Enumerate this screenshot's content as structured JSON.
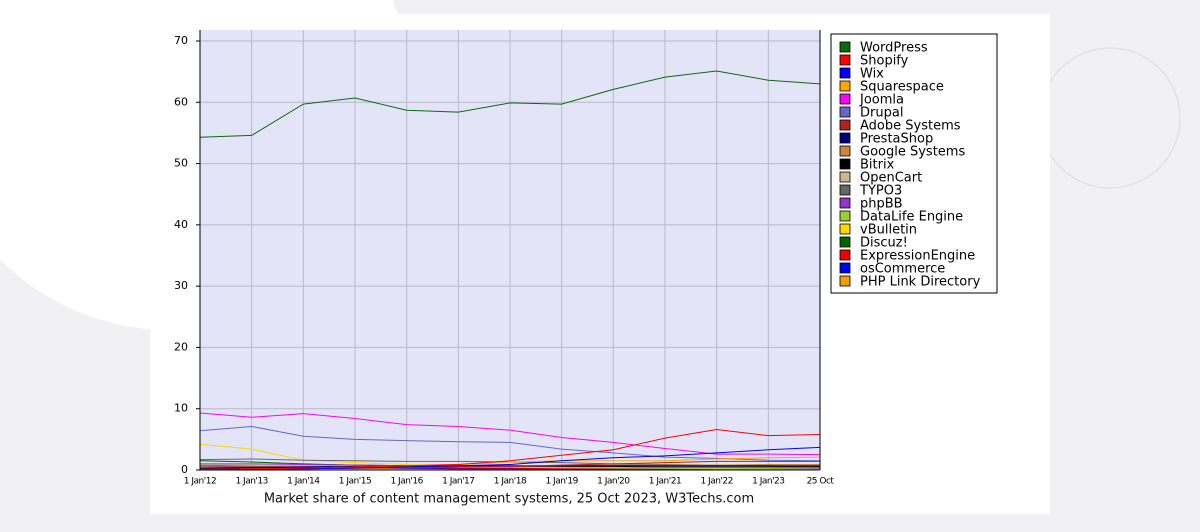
{
  "chart_data": {
    "type": "line",
    "title": "Market share of content management systems, 25 Oct 2023, W3Techs.com",
    "categories": [
      "1 Jan'12",
      "1 Jan'13",
      "1 Jan'14",
      "1 Jan'15",
      "1 Jan'16",
      "1 Jan'17",
      "1 Jan'18",
      "1 Jan'19",
      "1 Jan'20",
      "1 Jan'21",
      "1 Jan'22",
      "1 Jan'23",
      "25 Oct"
    ],
    "ylim": [
      0,
      70
    ],
    "yticks": [
      0,
      10,
      20,
      30,
      40,
      50,
      60,
      70
    ],
    "grid": true,
    "legend": "right",
    "series": [
      {
        "name": "WordPress",
        "color": "#0b6b0b",
        "values": [
          54.3,
          54.6,
          59.7,
          60.7,
          58.7,
          58.4,
          59.9,
          59.7,
          62.1,
          64.1,
          65.1,
          63.6,
          63.0
        ]
      },
      {
        "name": "Shopify",
        "color": "#ff0000",
        "values": [
          0.1,
          0.2,
          0.3,
          0.5,
          0.7,
          0.9,
          1.5,
          2.4,
          3.3,
          5.2,
          6.6,
          5.6,
          5.8
        ]
      },
      {
        "name": "Wix",
        "color": "#0000ff",
        "values": [
          0.1,
          0.1,
          0.2,
          0.3,
          0.5,
          0.7,
          0.9,
          1.5,
          2.0,
          2.3,
          2.8,
          3.3,
          3.7
        ]
      },
      {
        "name": "Squarespace",
        "color": "#ffa500",
        "values": [
          0.1,
          0.2,
          0.3,
          0.5,
          0.7,
          0.9,
          1.3,
          1.5,
          1.5,
          1.5,
          1.8,
          2.0,
          2.1
        ]
      },
      {
        "name": "Joomla",
        "color": "#ff00ff",
        "values": [
          9.3,
          8.6,
          9.2,
          8.4,
          7.4,
          7.1,
          6.5,
          5.3,
          4.5,
          3.5,
          2.6,
          2.6,
          2.5
        ]
      },
      {
        "name": "Drupal",
        "color": "#6666cc",
        "values": [
          6.4,
          7.1,
          5.5,
          5.0,
          4.8,
          4.6,
          4.5,
          3.4,
          2.8,
          2.1,
          1.9,
          1.6,
          1.5
        ]
      },
      {
        "name": "Adobe Systems",
        "color": "#b22222",
        "values": [
          0.1,
          0.1,
          0.2,
          0.3,
          0.4,
          0.5,
          0.6,
          0.8,
          1.0,
          1.2,
          1.4,
          1.4,
          1.4
        ]
      },
      {
        "name": "PrestaShop",
        "color": "#000080",
        "values": [
          0.3,
          0.4,
          0.5,
          0.6,
          0.7,
          0.7,
          0.7,
          0.7,
          0.7,
          0.7,
          0.7,
          0.7,
          0.7
        ]
      },
      {
        "name": "Google Systems",
        "color": "#cd853f",
        "values": [
          0.5,
          0.5,
          0.6,
          0.6,
          0.6,
          0.6,
          0.6,
          0.7,
          0.8,
          0.8,
          0.8,
          0.9,
          0.9
        ]
      },
      {
        "name": "Bitrix",
        "color": "#000000",
        "values": [
          0.2,
          0.3,
          0.4,
          0.5,
          0.6,
          0.6,
          0.6,
          0.6,
          0.6,
          0.5,
          0.5,
          0.5,
          0.5
        ]
      },
      {
        "name": "OpenCart",
        "color": "#d2b48c",
        "values": [
          0.2,
          0.3,
          0.4,
          0.5,
          0.5,
          0.5,
          0.5,
          0.5,
          0.5,
          0.4,
          0.4,
          0.4,
          0.4
        ]
      },
      {
        "name": "TYPO3",
        "color": "#666666",
        "values": [
          1.7,
          1.8,
          1.6,
          1.5,
          1.4,
          1.4,
          1.3,
          1.2,
          1.0,
          0.9,
          0.8,
          0.7,
          0.6
        ]
      },
      {
        "name": "phpBB",
        "color": "#9932cc",
        "values": [
          1.0,
          1.0,
          0.9,
          0.8,
          0.7,
          0.7,
          0.6,
          0.5,
          0.5,
          0.4,
          0.4,
          0.4,
          0.3
        ]
      },
      {
        "name": "DataLife Engine",
        "color": "#9acd32",
        "values": [
          0.8,
          0.8,
          0.7,
          0.6,
          0.6,
          0.5,
          0.5,
          0.4,
          0.3,
          0.3,
          0.3,
          0.2,
          0.2
        ]
      },
      {
        "name": "vBulletin",
        "color": "#ffd700",
        "values": [
          4.2,
          3.4,
          1.6,
          1.2,
          0.9,
          0.8,
          0.6,
          0.5,
          0.4,
          0.3,
          0.2,
          0.2,
          0.2
        ]
      },
      {
        "name": "Discuz!",
        "color": "#006400",
        "values": [
          1.5,
          1.3,
          1.0,
          0.8,
          0.7,
          0.6,
          0.5,
          0.5,
          0.4,
          0.3,
          0.3,
          0.3,
          0.3
        ]
      },
      {
        "name": "ExpressionEngine",
        "color": "#ee0000",
        "values": [
          0.5,
          0.5,
          0.5,
          0.4,
          0.4,
          0.3,
          0.3,
          0.2,
          0.2,
          0.1,
          0.1,
          0.1,
          0.1
        ]
      },
      {
        "name": "osCommerce",
        "color": "#0000ee",
        "values": [
          0.7,
          0.6,
          0.5,
          0.4,
          0.3,
          0.2,
          0.2,
          0.1,
          0.1,
          0.1,
          0.1,
          0.1,
          0.1
        ]
      },
      {
        "name": "PHP Link Directory",
        "color": "#f0a000",
        "values": [
          0.3,
          0.3,
          0.2,
          0.2,
          0.2,
          0.1,
          0.1,
          0.1,
          0.1,
          0.1,
          0.1,
          0.1,
          0.1
        ]
      }
    ]
  }
}
